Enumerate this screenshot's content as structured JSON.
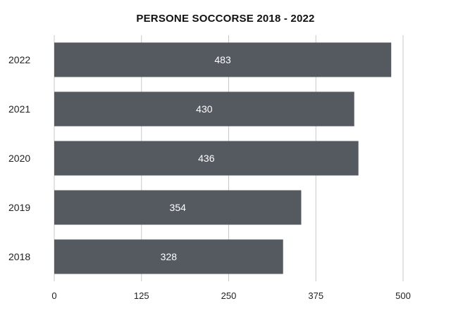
{
  "chart_data": {
    "type": "bar",
    "orientation": "horizontal",
    "title": "PERSONE SOCCORSE 2018 - 2022",
    "categories": [
      "2022",
      "2021",
      "2020",
      "2019",
      "2018"
    ],
    "values": [
      483,
      430,
      436,
      354,
      328
    ],
    "xlim": [
      0,
      500
    ],
    "xticks": [
      0,
      125,
      250,
      375,
      500
    ],
    "xlabel": "",
    "ylabel": "",
    "grid": "vertical",
    "legend": "none",
    "bar_color": "#555960",
    "grid_color": "#c8c8c8"
  }
}
